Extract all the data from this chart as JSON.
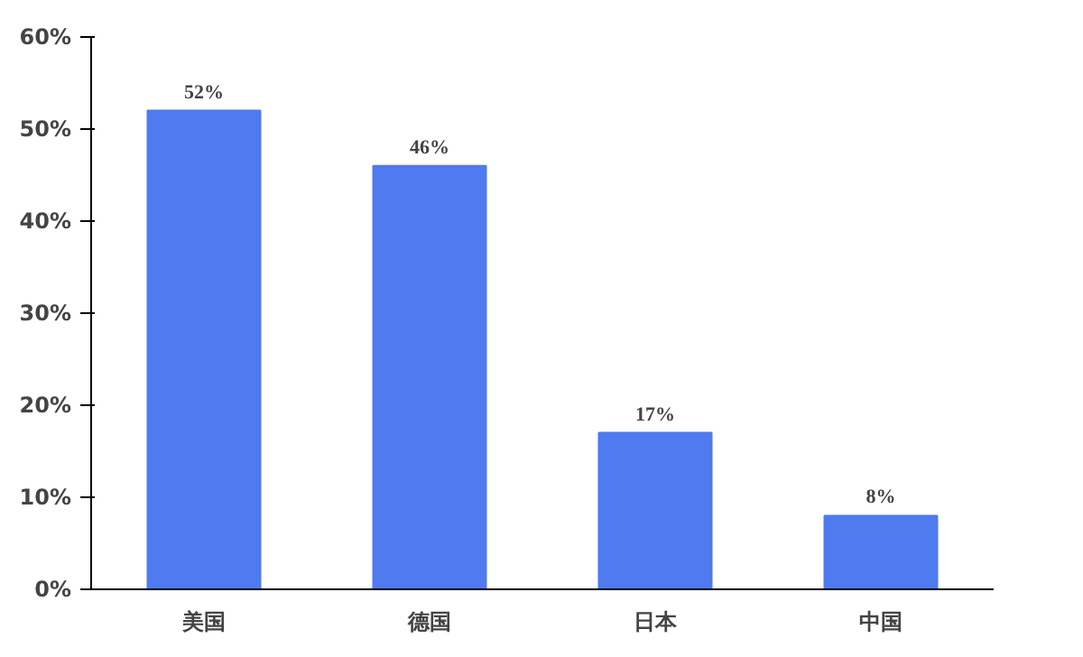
{
  "chart_data": {
    "type": "bar",
    "categories": [
      "美国",
      "德国",
      "日本",
      "中国"
    ],
    "values": [
      52,
      46,
      17,
      8
    ],
    "value_labels": [
      "52%",
      "46%",
      "17%",
      "8%"
    ],
    "color": "#4f7af0",
    "ylim": [
      0,
      60
    ],
    "yticks": [
      {
        "value": 0,
        "label": "0%"
      },
      {
        "value": 10,
        "label": "10%"
      },
      {
        "value": 20,
        "label": "20%"
      },
      {
        "value": 30,
        "label": "30%"
      },
      {
        "value": 40,
        "label": "40%"
      },
      {
        "value": 50,
        "label": "50%"
      },
      {
        "value": 60,
        "label": "60%"
      }
    ],
    "grid": false
  }
}
